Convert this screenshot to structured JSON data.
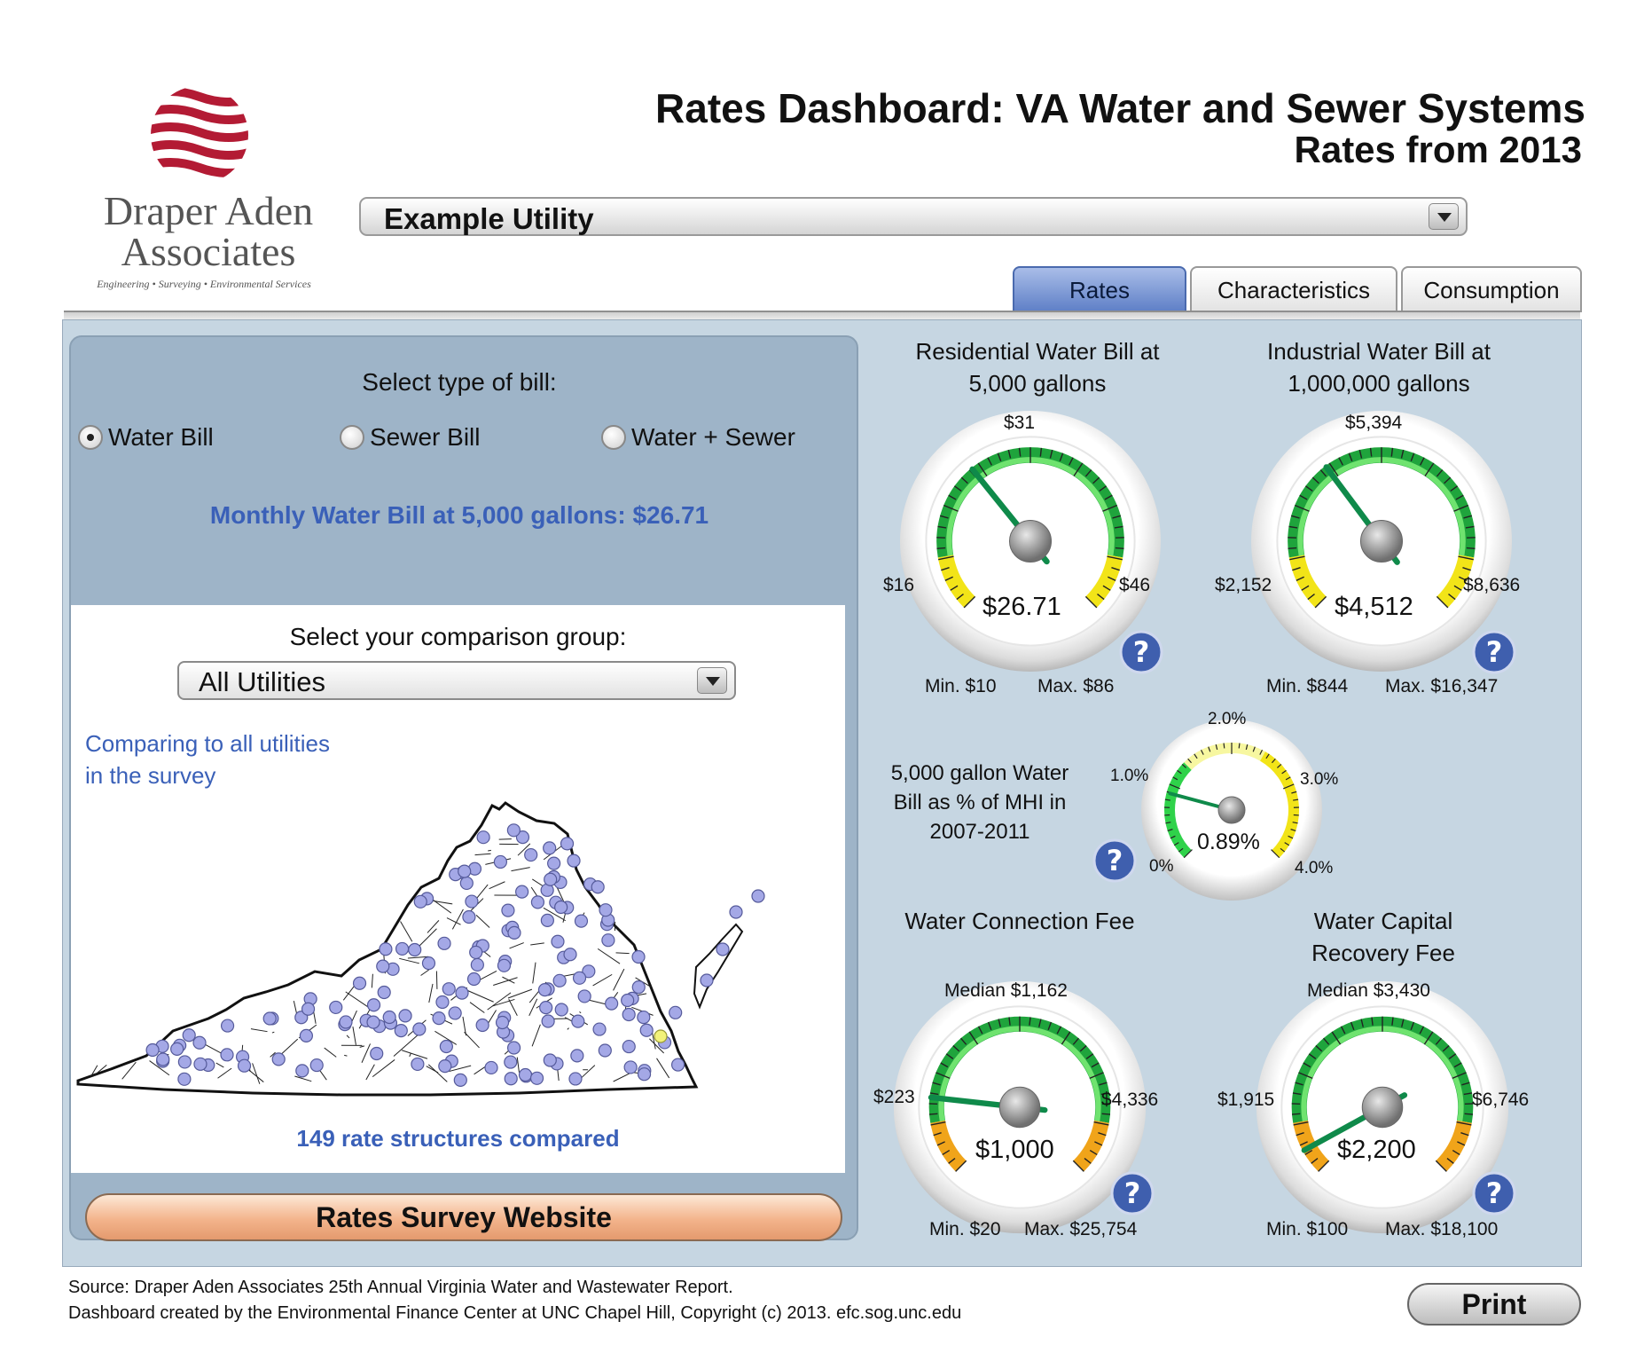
{
  "header": {
    "logo_line1": "Draper Aden",
    "logo_line2": "Associates",
    "logo_tagline": "Engineering • Surveying • Environmental Services",
    "title": "Rates Dashboard: VA Water and Sewer Systems",
    "subtitle": "Rates from 2013",
    "utility_selected": "Example Utility"
  },
  "tabs": [
    {
      "label": "Rates",
      "active": true
    },
    {
      "label": "Characteristics",
      "active": false
    },
    {
      "label": "Consumption",
      "active": false
    }
  ],
  "left": {
    "bill_type_label": "Select type of bill:",
    "radios": [
      {
        "label": "Water Bill",
        "selected": true
      },
      {
        "label": "Sewer Bill",
        "selected": false
      },
      {
        "label": "Water + Sewer",
        "selected": false
      }
    ],
    "monthly_text": "Monthly Water Bill at 5,000 gallons: $26.71",
    "comparison_label": "Select your comparison group:",
    "comparison_selected": "All Utilities",
    "comparison_note_line1": "Comparing to all utilities",
    "comparison_note_line2": "in the survey",
    "count_text": "149 rate structures compared",
    "survey_button": "Rates Survey Website"
  },
  "gauges": {
    "residential": {
      "title1": "Residential Water Bill at",
      "title2": "5,000 gallons",
      "top": "$31",
      "left": "$16",
      "right": "$46",
      "value": "$26.71",
      "min": "Min. $10",
      "max": "Max. $86",
      "fraction": 0.356
    },
    "industrial": {
      "title1": "Industrial Water Bill at",
      "title2": "1,000,000 gallons",
      "top": "$5,394",
      "left": "$2,152",
      "right": "$8,636",
      "value": "$4,512",
      "min": "Min. $844",
      "max": "Max. $16,347",
      "fraction": 0.364
    },
    "mhi": {
      "label1": "5,000 gallon Water",
      "label2": "Bill as % of MHI in",
      "label3": "2007-2011",
      "t0": "0%",
      "t1": "1.0%",
      "t2": "2.0%",
      "t3": "3.0%",
      "t4": "4.0%",
      "value": "0.89%",
      "fraction": 0.2225
    },
    "connection": {
      "title1": "Water Connection Fee",
      "title2": "",
      "top": "Median $1,162",
      "left": "$223",
      "right": "$4,336",
      "value": "$1,000",
      "min": "Min. $20",
      "max": "Max. $25,754",
      "fraction": 0.19
    },
    "capital": {
      "title1": "Water Capital",
      "title2": "Recovery Fee",
      "top": "Median $3,430",
      "left": "$1,915",
      "right": "$6,746",
      "value": "$2,200",
      "min": "Min. $100",
      "max": "Max. $18,100",
      "fraction": 0.06
    }
  },
  "footer": {
    "line1": "Source: Draper Aden Associates 25th Annual Virginia Water and Wastewater Report.",
    "line2": "Dashboard created  by the Environmental Finance Center at UNC Chapel Hill, Copyright (c) 2013. efc.sog.unc.edu",
    "print_label": "Print"
  },
  "colors": {
    "accent_blue": "#3a60b8",
    "gauge_green": "#1fa43c",
    "gauge_yellow": "#f2e418",
    "gauge_orange": "#f0a41a",
    "logo_red": "#b31b34"
  }
}
